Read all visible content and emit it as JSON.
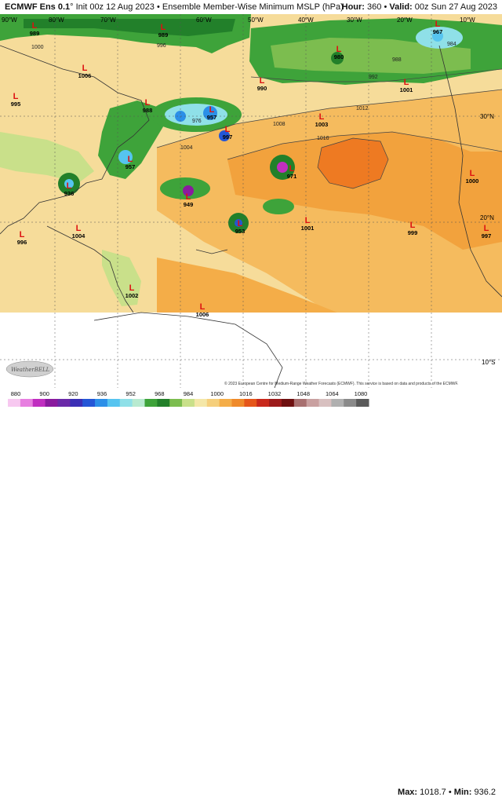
{
  "header": {
    "model": "ECMWF Ens 0.1",
    "degree": "°",
    "init": "Init 00z 12 Aug 2023",
    "bullet": "•",
    "product": "Ensemble Member-Wise Minimum MSLP (hPa)",
    "hour_label": "Hour:",
    "hour_value": "360",
    "valid_label": "Valid:",
    "valid_value": "00z Sun 27 Aug 2023"
  },
  "map": {
    "lon_labels": [
      "90°W",
      "80°W",
      "70°W",
      "60°W",
      "50°W",
      "40°W",
      "30°W",
      "20°W",
      "10°W"
    ],
    "lat_labels": [
      "30°N",
      "20°N",
      "10°S",
      "20°N",
      "10°S"
    ],
    "lat_right": [
      "30°N",
      "20°N",
      "10°S"
    ],
    "lows": [
      {
        "letter": "L",
        "value": "989"
      },
      {
        "letter": "L",
        "value": "989"
      },
      {
        "letter": "L",
        "value": "980"
      },
      {
        "letter": "L",
        "value": "967"
      },
      {
        "letter": "L",
        "value": "1006"
      },
      {
        "letter": "L",
        "value": "995"
      },
      {
        "letter": "L",
        "value": "988"
      },
      {
        "letter": "L",
        "value": "957"
      },
      {
        "letter": "L",
        "value": "997"
      },
      {
        "letter": "L",
        "value": "990"
      },
      {
        "letter": "L",
        "value": "1001"
      },
      {
        "letter": "L",
        "value": "1003"
      },
      {
        "letter": "L",
        "value": "957"
      },
      {
        "letter": "L",
        "value": "936"
      },
      {
        "letter": "L",
        "value": "971"
      },
      {
        "letter": "L",
        "value": "949"
      },
      {
        "letter": "L",
        "value": "1000"
      },
      {
        "letter": "L",
        "value": "953"
      },
      {
        "letter": "L",
        "value": "1001"
      },
      {
        "letter": "L",
        "value": "999"
      },
      {
        "letter": "L",
        "value": "997"
      },
      {
        "letter": "L",
        "value": "996"
      },
      {
        "letter": "L",
        "value": "1004"
      },
      {
        "letter": "L",
        "value": "1002"
      },
      {
        "letter": "L",
        "value": "1006"
      }
    ],
    "isobar_labels": [
      "1000",
      "1004",
      "1008",
      "1012",
      "1016",
      "996",
      "992",
      "988",
      "984",
      "976"
    ],
    "copyright": "© 2023 European Centre for Medium-Range Weather Forecasts (ECMWF). This service is based on data and products of the ECMWF.",
    "logo_text": "WeatherBELL"
  },
  "colorbar": {
    "ticks": [
      "880",
      "900",
      "920",
      "936",
      "952",
      "968",
      "984",
      "1000",
      "1016",
      "1032",
      "1048",
      "1064",
      "1080"
    ],
    "colors": [
      "#f7c8f0",
      "#e77fe0",
      "#c02ec0",
      "#8a1a9e",
      "#6b2aa8",
      "#3b2fb5",
      "#2456d6",
      "#2b8fe8",
      "#56c4f0",
      "#8fe0e8",
      "#b8ead0",
      "#3ea33a",
      "#22802a",
      "#7cbd4f",
      "#c9e08a",
      "#f4e7a8",
      "#f5cf7c",
      "#f4ad48",
      "#ef8a2a",
      "#e5561a",
      "#c8281c",
      "#9c1a1a",
      "#6e1010",
      "#a87070",
      "#c9a0a0",
      "#d8c0c0",
      "#b0b0b0",
      "#8a8a8a",
      "#5a5a5a"
    ]
  },
  "stats": {
    "max_label": "Max:",
    "max_value": "1018.7",
    "min_label": "Min:",
    "min_value": "936.2",
    "bullet": "•"
  }
}
